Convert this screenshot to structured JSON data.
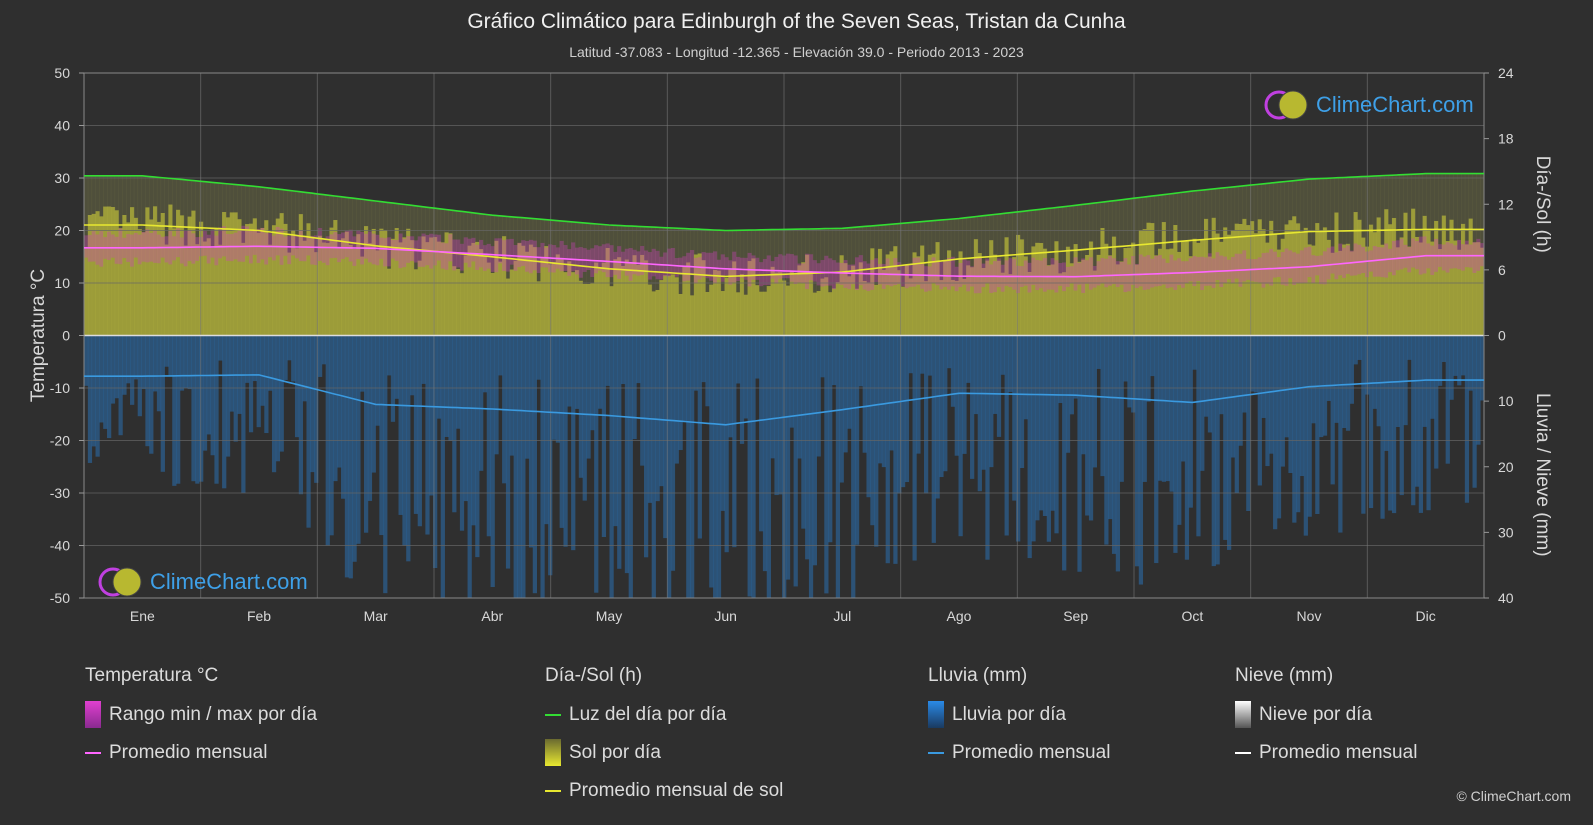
{
  "title": "Gráfico Climático para Edinburgh of the Seven Seas,  Tristan da Cunha",
  "subtitle": "Latitud -37.083 - Longitud -12.365 - Elevación 39.0 - Periodo 2013 - 2023",
  "brand": "ClimeChart.com",
  "copyright": "© ClimeChart.com",
  "colors": {
    "background": "#2f2f2f",
    "daylight": "#33dd33",
    "sunshine_line": "#e8e830",
    "sunshine_fill": "#b5b53a",
    "temp_line": "#ff66ff",
    "temp_range": "#d040c0",
    "rain": "#2a6fb0",
    "rain_line": "#3a9ae0",
    "snow_line": "#ffffff"
  },
  "chart_data": {
    "type": "line",
    "months": [
      "Ene",
      "Feb",
      "Mar",
      "Abr",
      "May",
      "Jun",
      "Jul",
      "Ago",
      "Sep",
      "Oct",
      "Nov",
      "Dic"
    ],
    "left_axis": {
      "label": "Temperatura °C",
      "range": [
        -50,
        50
      ],
      "ticks": [
        50,
        40,
        30,
        20,
        10,
        0,
        -10,
        -20,
        -30,
        -40,
        -50
      ]
    },
    "right_axis_top": {
      "label": "Día-/Sol (h)",
      "range": [
        0,
        24
      ],
      "ticks": [
        24,
        18,
        12,
        6,
        0
      ]
    },
    "right_axis_bottom": {
      "label": "Lluvia / Nieve (mm)",
      "range": [
        0,
        40
      ],
      "ticks": [
        0,
        10,
        20,
        30,
        40
      ]
    },
    "series": [
      {
        "name": "Luz del día por día",
        "unit": "h",
        "values": [
          14.6,
          13.6,
          12.3,
          11.0,
          10.1,
          9.6,
          9.8,
          10.7,
          11.9,
          13.2,
          14.3,
          14.8
        ]
      },
      {
        "name": "Promedio mensual de sol",
        "unit": "h",
        "values": [
          10.1,
          9.6,
          8.2,
          7.2,
          6.1,
          5.4,
          5.8,
          7.0,
          7.8,
          8.7,
          9.5,
          9.7
        ]
      },
      {
        "name": "Promedio mensual",
        "group": "Temperatura °C",
        "unit": "°C",
        "values": [
          16.7,
          17.0,
          16.6,
          15.4,
          14.1,
          12.7,
          11.9,
          11.3,
          11.2,
          12.0,
          13.1,
          15.2
        ]
      },
      {
        "name": "Rango min / max por día",
        "group": "Temperatura °C",
        "unit": "°C",
        "min": [
          14.0,
          14.5,
          14.0,
          13.0,
          11.5,
          10.5,
          9.5,
          9.0,
          9.0,
          9.5,
          10.5,
          12.5
        ],
        "max": [
          19.5,
          20.0,
          19.0,
          18.0,
          16.5,
          15.0,
          14.5,
          14.0,
          14.0,
          15.0,
          16.0,
          18.0
        ]
      },
      {
        "name": "Promedio mensual",
        "group": "Lluvia (mm)",
        "unit": "mm",
        "values": [
          6.2,
          6.0,
          10.5,
          11.2,
          12.2,
          13.6,
          11.3,
          8.8,
          9.1,
          10.2,
          7.8,
          6.8
        ]
      },
      {
        "name": "Promedio mensual",
        "group": "Nieve (mm)",
        "unit": "mm",
        "values": [
          0,
          0,
          0,
          0,
          0,
          0,
          0,
          0,
          0,
          0,
          0,
          0
        ]
      }
    ]
  },
  "legend": {
    "groups": [
      {
        "title": "Temperatura °C",
        "items": [
          {
            "label": "Rango min / max por día",
            "kind": "swatch",
            "color": "#d040c0"
          },
          {
            "label": "Promedio mensual",
            "kind": "line",
            "color": "#ff66ff"
          }
        ]
      },
      {
        "title": "Día-/Sol (h)",
        "items": [
          {
            "label": "Luz del día por día",
            "kind": "line",
            "color": "#33dd33"
          },
          {
            "label": "Sol por día",
            "kind": "swatch",
            "color": "#c8c83a"
          },
          {
            "label": "Promedio mensual de sol",
            "kind": "line",
            "color": "#e8e830"
          }
        ]
      },
      {
        "title": "Lluvia (mm)",
        "items": [
          {
            "label": "Lluvia por día",
            "kind": "swatch",
            "color": "#2a7fd0"
          },
          {
            "label": "Promedio mensual",
            "kind": "line",
            "color": "#3a9ae0"
          }
        ]
      },
      {
        "title": "Nieve (mm)",
        "items": [
          {
            "label": "Nieve por día",
            "kind": "swatch",
            "color": "#dddddd"
          },
          {
            "label": "Promedio mensual",
            "kind": "line",
            "color": "#ffffff"
          }
        ]
      }
    ]
  }
}
